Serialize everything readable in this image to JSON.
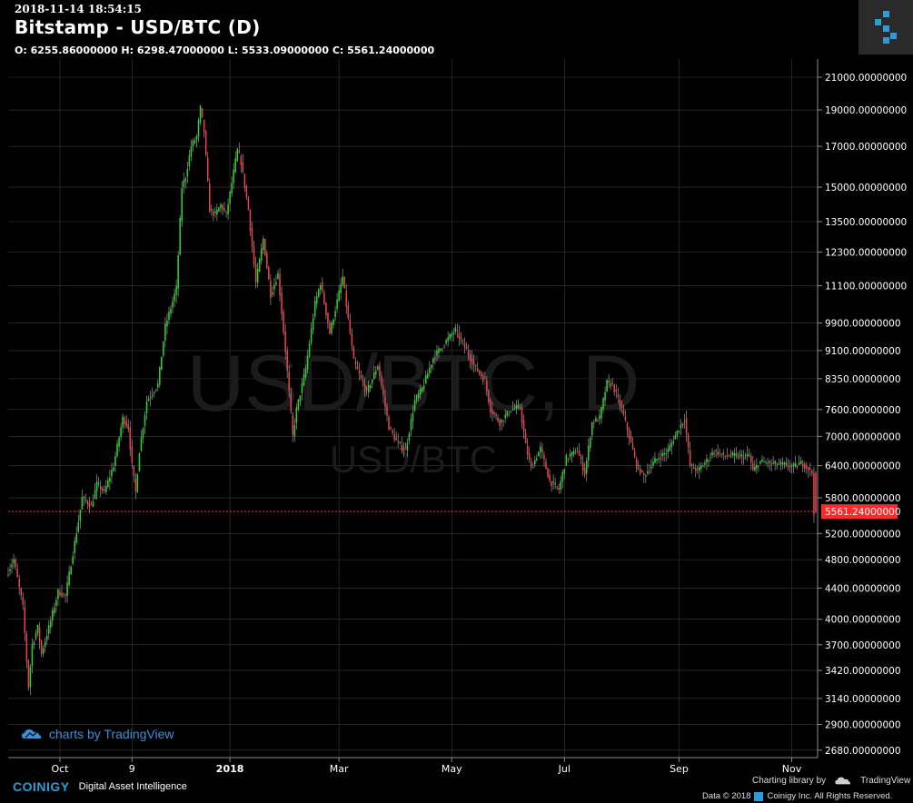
{
  "header": {
    "timestamp": "2018-11-14 18:54:15",
    "title": "Bitstamp - USD/BTC (D)",
    "ohlc": "O: 6255.86000000 H: 6298.47000000 L: 5533.09000000 C: 5561.24000000"
  },
  "watermark": {
    "big": "USD/BTC, D",
    "small": "USD/BTC"
  },
  "tradingview_badge": "charts by TradingView",
  "footer": {
    "brand": "COINIGY",
    "tagline": "Digital Asset Intelligence",
    "charting_library": "Charting library by",
    "tradingview": "TradingView",
    "copyright": "Data © 2018",
    "company": "Coinigy Inc. All Rights Reserved."
  },
  "colors": {
    "up": "#2fd12f",
    "down": "#e8424c",
    "price_line": "#ff2a2a",
    "grid": "#3a3a3a",
    "accent": "#2d9bd6"
  },
  "icons": [
    "coinigy-logo-icon",
    "tradingview-cloud-icon"
  ],
  "chart_data": {
    "type": "candlestick",
    "y_scale": "log",
    "ylim": [
      2620,
      22200
    ],
    "x_range": [
      "2017-09-03",
      "2018-11-15"
    ],
    "last_price_label": "5561.24000000",
    "last_price": 5561.24,
    "ytick_labels": [
      "21000.00000000",
      "19000.00000000",
      "17000.00000000",
      "15000.00000000",
      "13500.00000000",
      "12300.00000000",
      "11100.00000000",
      "9900.00000000",
      "9100.00000000",
      "8350.00000000",
      "7600.00000000",
      "7000.00000000",
      "6400.00000000",
      "5800.00000000",
      "5200.00000000",
      "4800.00000000",
      "4400.00000000",
      "4000.00000000",
      "3700.00000000",
      "3420.00000000",
      "3140.00000000",
      "2900.00000000",
      "2680.00000000"
    ],
    "xticks": [
      {
        "label": "Oct",
        "date": "2017-10-01"
      },
      {
        "label": "9",
        "date": "2017-11-09"
      },
      {
        "label": "2018",
        "date": "2018-01-01",
        "bold": true
      },
      {
        "label": "Mar",
        "date": "2018-03-01"
      },
      {
        "label": "May",
        "date": "2018-05-01"
      },
      {
        "label": "Jul",
        "date": "2018-07-01"
      },
      {
        "label": "Sep",
        "date": "2018-09-01"
      },
      {
        "label": "Nov",
        "date": "2018-11-01"
      }
    ],
    "price_path": [
      [
        "2017-09-03",
        4580
      ],
      [
        "2017-09-07",
        4800
      ],
      [
        "2017-09-12",
        4150
      ],
      [
        "2017-09-15",
        3250
      ],
      [
        "2017-09-17",
        3700
      ],
      [
        "2017-09-20",
        3900
      ],
      [
        "2017-09-22",
        3600
      ],
      [
        "2017-09-26",
        3900
      ],
      [
        "2017-10-01",
        4350
      ],
      [
        "2017-10-05",
        4300
      ],
      [
        "2017-10-12",
        5400
      ],
      [
        "2017-10-14",
        5800
      ],
      [
        "2017-10-19",
        5650
      ],
      [
        "2017-10-22",
        6050
      ],
      [
        "2017-10-26",
        5900
      ],
      [
        "2017-10-31",
        6400
      ],
      [
        "2017-11-05",
        7400
      ],
      [
        "2017-11-08",
        7200
      ],
      [
        "2017-11-10",
        6400
      ],
      [
        "2017-11-12",
        5900
      ],
      [
        "2017-11-14",
        6700
      ],
      [
        "2017-11-18",
        7800
      ],
      [
        "2017-11-24",
        8200
      ],
      [
        "2017-11-28",
        9800
      ],
      [
        "2017-12-04",
        11000
      ],
      [
        "2017-12-07",
        15000
      ],
      [
        "2017-12-09",
        15500
      ],
      [
        "2017-12-12",
        17000
      ],
      [
        "2017-12-15",
        17500
      ],
      [
        "2017-12-17",
        19100
      ],
      [
        "2017-12-19",
        17800
      ],
      [
        "2017-12-22",
        14000
      ],
      [
        "2017-12-25",
        13800
      ],
      [
        "2017-12-28",
        14200
      ],
      [
        "2017-12-31",
        13800
      ],
      [
        "2018-01-03",
        15200
      ],
      [
        "2018-01-06",
        16800
      ],
      [
        "2018-01-08",
        16200
      ],
      [
        "2018-01-12",
        14000
      ],
      [
        "2018-01-16",
        11200
      ],
      [
        "2018-01-20",
        12800
      ],
      [
        "2018-01-24",
        10800
      ],
      [
        "2018-01-28",
        11500
      ],
      [
        "2018-02-01",
        9100
      ],
      [
        "2018-02-05",
        7000
      ],
      [
        "2018-02-07",
        7600
      ],
      [
        "2018-02-12",
        8600
      ],
      [
        "2018-02-17",
        10500
      ],
      [
        "2018-02-20",
        11200
      ],
      [
        "2018-02-25",
        9600
      ],
      [
        "2018-03-04",
        11400
      ],
      [
        "2018-03-07",
        10000
      ],
      [
        "2018-03-10",
        8800
      ],
      [
        "2018-03-17",
        8000
      ],
      [
        "2018-03-23",
        8700
      ],
      [
        "2018-03-29",
        7200
      ],
      [
        "2018-04-02",
        6900
      ],
      [
        "2018-04-07",
        6700
      ],
      [
        "2018-04-12",
        7800
      ],
      [
        "2018-04-16",
        8100
      ],
      [
        "2018-04-22",
        8900
      ],
      [
        "2018-04-28",
        9300
      ],
      [
        "2018-05-04",
        9700
      ],
      [
        "2018-05-10",
        9100
      ],
      [
        "2018-05-14",
        8700
      ],
      [
        "2018-05-20",
        8300
      ],
      [
        "2018-05-23",
        7600
      ],
      [
        "2018-05-28",
        7300
      ],
      [
        "2018-06-03",
        7600
      ],
      [
        "2018-06-08",
        7650
      ],
      [
        "2018-06-11",
        6800
      ],
      [
        "2018-06-14",
        6350
      ],
      [
        "2018-06-19",
        6750
      ],
      [
        "2018-06-24",
        6100
      ],
      [
        "2018-06-29",
        5950
      ],
      [
        "2018-07-03",
        6550
      ],
      [
        "2018-07-09",
        6700
      ],
      [
        "2018-07-13",
        6250
      ],
      [
        "2018-07-17",
        7300
      ],
      [
        "2018-07-21",
        7400
      ],
      [
        "2018-07-25",
        8250
      ],
      [
        "2018-07-28",
        8200
      ],
      [
        "2018-08-02",
        7600
      ],
      [
        "2018-08-06",
        7000
      ],
      [
        "2018-08-10",
        6400
      ],
      [
        "2018-08-14",
        6200
      ],
      [
        "2018-08-20",
        6500
      ],
      [
        "2018-08-27",
        6700
      ],
      [
        "2018-09-01",
        7100
      ],
      [
        "2018-09-05",
        7400
      ],
      [
        "2018-09-08",
        6400
      ],
      [
        "2018-09-12",
        6300
      ],
      [
        "2018-09-17",
        6500
      ],
      [
        "2018-09-21",
        6700
      ],
      [
        "2018-09-26",
        6600
      ],
      [
        "2018-10-01",
        6600
      ],
      [
        "2018-10-06",
        6580
      ],
      [
        "2018-10-10",
        6600
      ],
      [
        "2018-10-12",
        6300
      ],
      [
        "2018-10-16",
        6480
      ],
      [
        "2018-10-22",
        6440
      ],
      [
        "2018-10-28",
        6420
      ],
      [
        "2018-11-03",
        6380
      ],
      [
        "2018-11-07",
        6450
      ],
      [
        "2018-11-11",
        6350
      ],
      [
        "2018-11-13",
        6260
      ],
      [
        "2018-11-14",
        5561
      ]
    ]
  }
}
